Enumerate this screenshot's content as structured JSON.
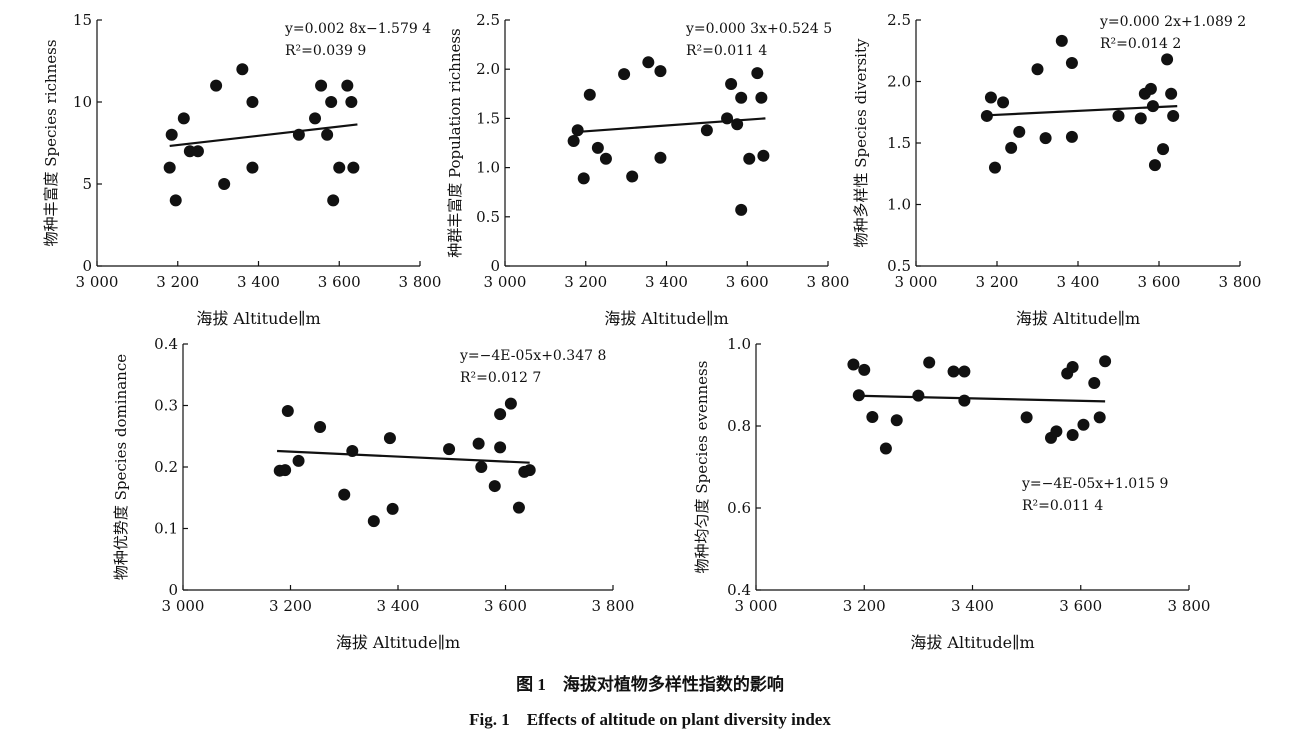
{
  "chart_data": [
    {
      "type": "scatter",
      "xlabel": "海拔 Altitude∥m",
      "ylabel": "物种丰富度 Species richness",
      "xlim": [
        3000,
        3800
      ],
      "ylim": [
        0,
        15
      ],
      "xticks": [
        3000,
        3200,
        3400,
        3600,
        3800
      ],
      "xtick_labels": [
        "3 000",
        "3 200",
        "3 400",
        "3 600",
        "3 800"
      ],
      "yticks": [
        0,
        5,
        10,
        15
      ],
      "ytick_labels": [
        "0",
        "5",
        "10",
        "15"
      ],
      "equation": "y=0.002 8x−1.579 4",
      "r2": "R²=0.039 9",
      "points": [
        [
          3180,
          6
        ],
        [
          3185,
          8
        ],
        [
          3195,
          4
        ],
        [
          3215,
          9
        ],
        [
          3230,
          7
        ],
        [
          3250,
          7
        ],
        [
          3295,
          11
        ],
        [
          3315,
          5
        ],
        [
          3360,
          12
        ],
        [
          3385,
          10
        ],
        [
          3385,
          6
        ],
        [
          3500,
          8
        ],
        [
          3540,
          9
        ],
        [
          3555,
          11
        ],
        [
          3570,
          8
        ],
        [
          3580,
          10
        ],
        [
          3585,
          4
        ],
        [
          3600,
          6
        ],
        [
          3620,
          11
        ],
        [
          3630,
          10
        ],
        [
          3635,
          6
        ]
      ],
      "trend": [
        [
          3180,
          7.32
        ],
        [
          3645,
          8.63
        ]
      ],
      "grid": false
    },
    {
      "type": "scatter",
      "xlabel": "海拔 Altitude∥m",
      "ylabel": "种群丰富度 Population richness",
      "xlim": [
        3000,
        3800
      ],
      "ylim": [
        0,
        2.5
      ],
      "xticks": [
        3000,
        3200,
        3400,
        3600,
        3800
      ],
      "xtick_labels": [
        "3 000",
        "3 200",
        "3 400",
        "3 600",
        "3 800"
      ],
      "yticks": [
        0,
        0.5,
        1.0,
        1.5,
        2.0,
        2.5
      ],
      "ytick_labels": [
        "0",
        "0.5",
        "1.0",
        "1.5",
        "2.0",
        "2.5"
      ],
      "equation": "y=0.000 3x+0.524 5",
      "r2": "R²=0.011 4",
      "points": [
        [
          3170,
          1.27
        ],
        [
          3180,
          1.38
        ],
        [
          3195,
          0.89
        ],
        [
          3210,
          1.74
        ],
        [
          3230,
          1.2
        ],
        [
          3250,
          1.09
        ],
        [
          3295,
          1.95
        ],
        [
          3315,
          0.91
        ],
        [
          3355,
          2.07
        ],
        [
          3385,
          1.98
        ],
        [
          3385,
          1.1
        ],
        [
          3500,
          1.38
        ],
        [
          3550,
          1.5
        ],
        [
          3560,
          1.85
        ],
        [
          3575,
          1.44
        ],
        [
          3585,
          1.71
        ],
        [
          3585,
          0.57
        ],
        [
          3605,
          1.09
        ],
        [
          3625,
          1.96
        ],
        [
          3635,
          1.71
        ],
        [
          3640,
          1.12
        ]
      ],
      "trend": [
        [
          3170,
          1.36
        ],
        [
          3645,
          1.5
        ]
      ],
      "grid": false
    },
    {
      "type": "scatter",
      "xlabel": "海拔 Altitude∥m",
      "ylabel": "物种多样性 Species diversity",
      "xlim": [
        3000,
        3800
      ],
      "ylim": [
        0.5,
        2.5
      ],
      "xticks": [
        3000,
        3200,
        3400,
        3600,
        3800
      ],
      "xtick_labels": [
        "3 000",
        "3 200",
        "3 400",
        "3 600",
        "3 800"
      ],
      "yticks": [
        0.5,
        1.0,
        1.5,
        2.0,
        2.5
      ],
      "ytick_labels": [
        "0.5",
        "1.0",
        "1.5",
        "2.0",
        "2.5"
      ],
      "equation": "y=0.000 2x+1.089 2",
      "r2": "R²=0.014 2",
      "points": [
        [
          3175,
          1.72
        ],
        [
          3185,
          1.87
        ],
        [
          3195,
          1.3
        ],
        [
          3215,
          1.83
        ],
        [
          3235,
          1.46
        ],
        [
          3255,
          1.59
        ],
        [
          3300,
          2.1
        ],
        [
          3320,
          1.54
        ],
        [
          3360,
          2.33
        ],
        [
          3385,
          2.15
        ],
        [
          3385,
          1.55
        ],
        [
          3500,
          1.72
        ],
        [
          3555,
          1.7
        ],
        [
          3565,
          1.9
        ],
        [
          3580,
          1.94
        ],
        [
          3585,
          1.8
        ],
        [
          3590,
          1.32
        ],
        [
          3610,
          1.45
        ],
        [
          3620,
          2.18
        ],
        [
          3630,
          1.9
        ],
        [
          3635,
          1.72
        ]
      ],
      "trend": [
        [
          3175,
          1.725
        ],
        [
          3645,
          1.8
        ]
      ],
      "grid": false
    },
    {
      "type": "scatter",
      "xlabel": "海拔 Altitude∥m",
      "ylabel": "物种优势度 Species dominance",
      "xlim": [
        3000,
        3800
      ],
      "ylim": [
        0,
        0.4
      ],
      "xticks": [
        3000,
        3200,
        3400,
        3600,
        3800
      ],
      "xtick_labels": [
        "3 000",
        "3 200",
        "3 400",
        "3 600",
        "3 800"
      ],
      "yticks": [
        0,
        0.1,
        0.2,
        0.3,
        0.4
      ],
      "ytick_labels": [
        "0",
        "0.1",
        "0.2",
        "0.3",
        "0.4"
      ],
      "equation": "y=−4E-05x+0.347 8",
      "r2": "R²=0.012 7",
      "points": [
        [
          3180,
          0.194
        ],
        [
          3190,
          0.195
        ],
        [
          3195,
          0.291
        ],
        [
          3215,
          0.21
        ],
        [
          3255,
          0.265
        ],
        [
          3300,
          0.155
        ],
        [
          3315,
          0.226
        ],
        [
          3355,
          0.112
        ],
        [
          3385,
          0.247
        ],
        [
          3390,
          0.132
        ],
        [
          3495,
          0.229
        ],
        [
          3550,
          0.238
        ],
        [
          3555,
          0.2
        ],
        [
          3580,
          0.169
        ],
        [
          3590,
          0.286
        ],
        [
          3590,
          0.232
        ],
        [
          3610,
          0.303
        ],
        [
          3625,
          0.134
        ],
        [
          3635,
          0.192
        ],
        [
          3645,
          0.195
        ]
      ],
      "trend": [
        [
          3175,
          0.226
        ],
        [
          3645,
          0.207
        ]
      ],
      "grid": false
    },
    {
      "type": "scatter",
      "xlabel": "海拔 Altitude∥m",
      "ylabel": "物种均匀度 Species evenness",
      "xlim": [
        3000,
        3800
      ],
      "ylim": [
        0.4,
        1.0
      ],
      "xticks": [
        3000,
        3200,
        3400,
        3600,
        3800
      ],
      "xtick_labels": [
        "3 000",
        "3 200",
        "3 400",
        "3 600",
        "3 800"
      ],
      "yticks": [
        0.4,
        0.6,
        0.8,
        1.0
      ],
      "ytick_labels": [
        "0.4",
        "0.6",
        "0.8",
        "1.0"
      ],
      "equation": "y=−4E-05x+1.015 9",
      "r2": "R²=0.011 4",
      "points": [
        [
          3180,
          0.95
        ],
        [
          3190,
          0.875
        ],
        [
          3200,
          0.937
        ],
        [
          3215,
          0.822
        ],
        [
          3240,
          0.745
        ],
        [
          3260,
          0.814
        ],
        [
          3300,
          0.874
        ],
        [
          3320,
          0.955
        ],
        [
          3365,
          0.933
        ],
        [
          3385,
          0.933
        ],
        [
          3385,
          0.862
        ],
        [
          3500,
          0.821
        ],
        [
          3545,
          0.771
        ],
        [
          3555,
          0.787
        ],
        [
          3575,
          0.928
        ],
        [
          3585,
          0.944
        ],
        [
          3585,
          0.778
        ],
        [
          3605,
          0.803
        ],
        [
          3625,
          0.905
        ],
        [
          3635,
          0.821
        ],
        [
          3645,
          0.958
        ]
      ],
      "trend": [
        [
          3180,
          0.874
        ],
        [
          3645,
          0.86
        ]
      ],
      "grid": false
    }
  ],
  "caption": {
    "zh": "图 1　海拔对植物多样性指数的影响",
    "en": "Fig. 1　Effects of altitude on plant diversity index"
  }
}
